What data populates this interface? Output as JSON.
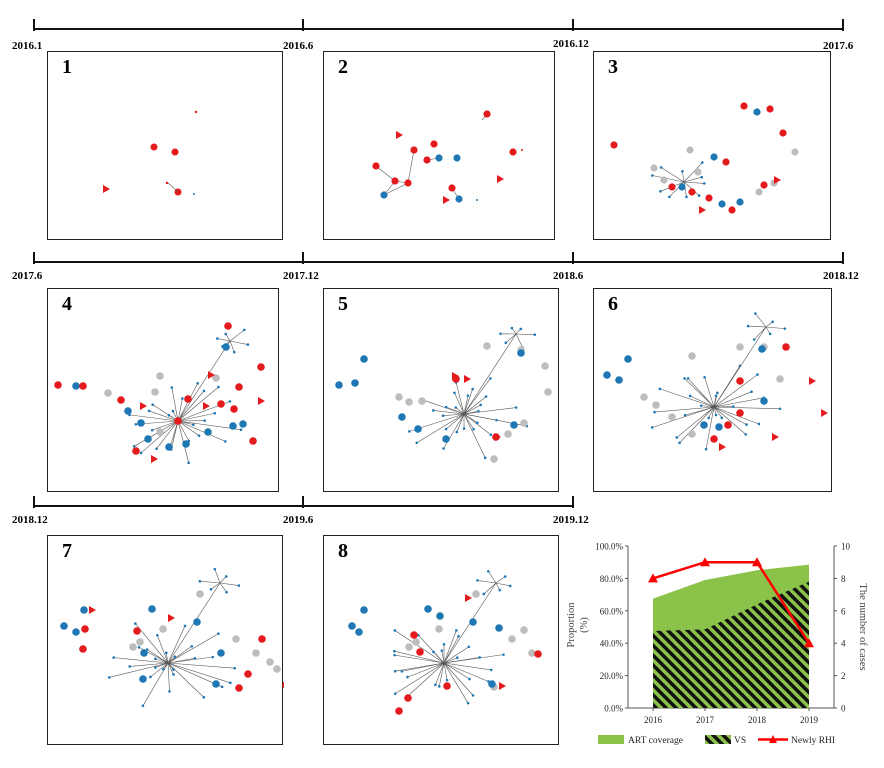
{
  "timeline": {
    "row1": [
      "2016.1",
      "2016.6",
      "2016.12",
      "2017.6"
    ],
    "row2": [
      "2017.6",
      "2017.12",
      "2018.6",
      "2018.12"
    ],
    "row3": [
      "2018.12",
      "2019.6",
      "2019.12"
    ]
  },
  "panels": [
    "1",
    "2",
    "3",
    "4",
    "5",
    "6",
    "7",
    "8"
  ],
  "colors": {
    "red": "#e41a1c",
    "blue": "#1f78b4",
    "gray": "#bdbdbd",
    "green": "#8bc34a",
    "edge": "#555555"
  },
  "chart_data": {
    "type": "area",
    "x": [
      "2016",
      "2017",
      "2018",
      "2019"
    ],
    "series": [
      {
        "name": "ART coverage",
        "type": "area",
        "axis": "left",
        "values": [
          67.5,
          79.0,
          85.0,
          88.5
        ]
      },
      {
        "name": "VS",
        "type": "area-hatched",
        "axis": "left",
        "values": [
          47.5,
          48.5,
          64.0,
          78.0
        ]
      },
      {
        "name": "Newly RHI",
        "type": "line",
        "axis": "right",
        "values": [
          8,
          9,
          9,
          4
        ]
      }
    ],
    "ylabel_left": "Proportion (%)",
    "ylabel_left_lines": [
      "Proportion",
      "(%)"
    ],
    "ylabel_right": "The number of cases",
    "yticks_left": [
      "0.0%",
      "20.0%",
      "40.0%",
      "60.0%",
      "80.0%",
      "100.0%"
    ],
    "yticks_right": [
      "0",
      "2",
      "4",
      "6",
      "8",
      "10"
    ],
    "ylim_left": [
      0,
      100
    ],
    "ylim_right": [
      0,
      10
    ],
    "legend": [
      "ART coverage",
      "VS",
      "Newly RHI"
    ],
    "legend_position": "bottom"
  }
}
